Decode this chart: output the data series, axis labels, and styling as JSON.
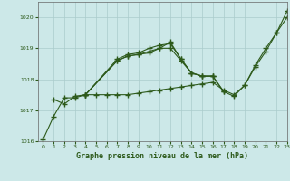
{
  "background_color": "#cce8e8",
  "grid_color": "#aacccc",
  "line_color": "#2d5a1b",
  "title": "Graphe pression niveau de la mer (hPa)",
  "xlim": [
    -0.5,
    23
  ],
  "ylim": [
    1016.0,
    1020.5
  ],
  "yticks": [
    1016,
    1017,
    1018,
    1019,
    1020
  ],
  "xticks": [
    0,
    1,
    2,
    3,
    4,
    5,
    6,
    7,
    8,
    9,
    10,
    11,
    12,
    13,
    14,
    15,
    16,
    17,
    18,
    19,
    20,
    21,
    22,
    23
  ],
  "series_a": {
    "x": [
      0,
      1,
      2,
      3,
      4,
      5,
      6,
      7,
      8,
      9,
      10,
      11,
      12,
      13,
      14,
      15,
      16,
      17,
      18,
      19,
      20,
      21,
      22,
      23
    ],
    "y": [
      1016.05,
      1016.8,
      1017.4,
      1017.4,
      1017.5,
      1017.5,
      1017.5,
      1017.5,
      1017.5,
      1017.55,
      1017.6,
      1017.65,
      1017.7,
      1017.75,
      1017.8,
      1017.85,
      1017.9,
      1017.65,
      1017.5,
      1017.8,
      1018.4,
      1018.9,
      1019.5,
      1020.0
    ]
  },
  "series_b": {
    "x": [
      1,
      2,
      3,
      4,
      7,
      8,
      9,
      10,
      11,
      12,
      13,
      14,
      15,
      16,
      17,
      18,
      19,
      20,
      21,
      22,
      23
    ],
    "y": [
      1017.35,
      1017.2,
      1017.45,
      1017.5,
      1018.65,
      1018.8,
      1018.85,
      1019.0,
      1019.1,
      1019.15,
      1018.65,
      1018.2,
      1018.1,
      1018.1,
      1017.6,
      1017.45,
      1017.8,
      1018.45,
      1019.0,
      1019.5,
      1020.2
    ]
  },
  "series_c": {
    "x": [
      4,
      7,
      8,
      9,
      10,
      11,
      12,
      13,
      14,
      15,
      16
    ],
    "y": [
      1017.5,
      1018.6,
      1018.75,
      1018.8,
      1018.9,
      1019.0,
      1019.0,
      1018.6,
      1018.2,
      1018.1,
      1018.1
    ]
  },
  "series_d": {
    "x": [
      4,
      7,
      8,
      9,
      10,
      11,
      12,
      13,
      14,
      15,
      16,
      17
    ],
    "y": [
      1017.5,
      1018.6,
      1018.75,
      1018.8,
      1018.85,
      1019.0,
      1019.2,
      1018.65,
      1018.2,
      1018.1,
      1018.1,
      1017.62
    ]
  }
}
